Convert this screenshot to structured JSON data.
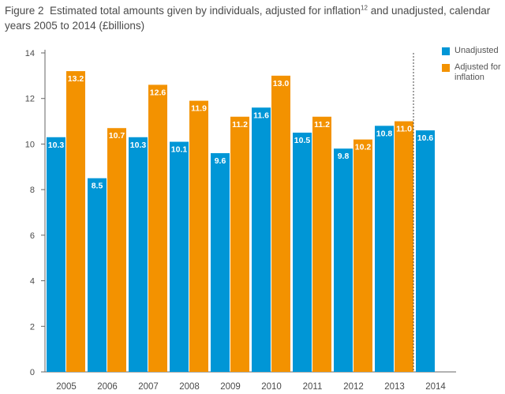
{
  "title": {
    "prefix": "Figure 2",
    "text_before": "Estimated total amounts given by individuals, adjusted for inflation",
    "superscript": "12",
    "text_after": " and unadjusted, calendar years 2005 to 2014 (£billions)"
  },
  "chart_data": {
    "type": "bar",
    "categories": [
      "2005",
      "2006",
      "2007",
      "2008",
      "2009",
      "2010",
      "2011",
      "2012",
      "2013",
      "2014"
    ],
    "series": [
      {
        "name": "Unadjusted",
        "color": "#0096d6",
        "values": [
          10.3,
          8.5,
          10.3,
          10.1,
          9.6,
          11.6,
          10.5,
          9.8,
          10.8,
          10.6
        ]
      },
      {
        "name": "Adjusted for inflation",
        "color": "#f39200",
        "values": [
          13.2,
          10.7,
          12.6,
          11.9,
          11.2,
          13.0,
          11.2,
          10.2,
          11.0,
          null
        ]
      }
    ],
    "data_labels": {
      "Unadjusted": [
        "10.3",
        "8.5",
        "10.3",
        "10.1",
        "9.6",
        "11.6",
        "10.5",
        "9.8",
        "10.8",
        "10.6"
      ],
      "Adjusted for inflation": [
        "13.2",
        "10.7",
        "12.6",
        "11.9",
        "11.2",
        "13.0",
        "11.2",
        "10.2",
        "11.0",
        ""
      ]
    },
    "ylim": [
      0,
      14
    ],
    "yticks": [
      "0",
      "2",
      "4",
      "6",
      "8",
      "10",
      "12",
      "14"
    ],
    "xlabel": "",
    "ylabel": "",
    "grid": false,
    "legend_position": "top-right",
    "divider_before": "2014"
  }
}
